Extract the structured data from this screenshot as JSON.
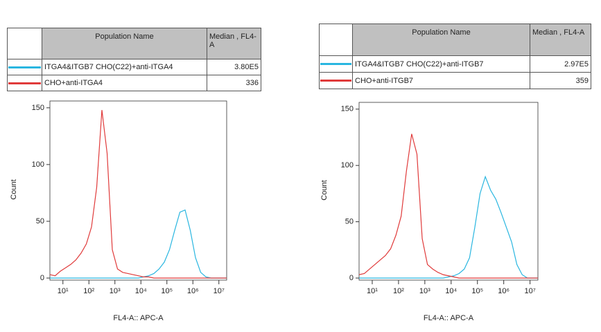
{
  "chart_data": [
    {
      "type": "line",
      "x_scale": "log",
      "xlabel": "FL4-A:: APC-A",
      "ylabel": "Count",
      "table_columns": [
        "Population Name",
        "Median , FL4-A"
      ],
      "x": [
        3.16,
        5.01,
        7.94,
        12.59,
        19.95,
        31.62,
        50.12,
        79.43,
        125.9,
        199.5,
        316.2,
        501.2,
        794.3,
        1259,
        1995,
        3162,
        5012,
        7943,
        12589,
        19953,
        31623,
        50119,
        79433,
        125893,
        199526,
        316228,
        501187,
        794328,
        1258925,
        1995262,
        3162278,
        5011872,
        7943282,
        12589254,
        19952623
      ],
      "series": [
        {
          "name": "ITGA4&ITGB7 CHO(C22)+anti-ITGA4",
          "color": "#29b6e0",
          "median": "3.80E5",
          "values": [
            0,
            0,
            0,
            0,
            0,
            0,
            0,
            0,
            0,
            0,
            0,
            0,
            0,
            0,
            0,
            0,
            0,
            0,
            1,
            2,
            4,
            8,
            14,
            25,
            42,
            58,
            60,
            42,
            18,
            5,
            1,
            0,
            0,
            0,
            0
          ]
        },
        {
          "name": "CHO+anti-ITGA4",
          "color": "#e03a3a",
          "median": "336",
          "values": [
            3,
            2,
            6,
            9,
            12,
            16,
            22,
            30,
            45,
            80,
            148,
            110,
            25,
            8,
            5,
            4,
            3,
            2,
            1,
            1,
            0,
            0,
            0,
            0,
            0,
            0,
            0,
            0,
            0,
            0,
            0,
            0,
            0,
            0,
            0
          ]
        }
      ],
      "xlim": [
        3.16,
        19952623
      ],
      "xticks": [
        {
          "value": 10,
          "label": "10¹"
        },
        {
          "value": 100,
          "label": "10²"
        },
        {
          "value": 1000,
          "label": "10³"
        },
        {
          "value": 10000,
          "label": "10⁴"
        },
        {
          "value": 100000,
          "label": "10⁵"
        },
        {
          "value": 1000000,
          "label": "10⁶"
        },
        {
          "value": 10000000,
          "label": "10⁷"
        }
      ],
      "ylim": [
        0,
        156
      ],
      "yticks": [
        0,
        50,
        100,
        150
      ]
    },
    {
      "type": "line",
      "x_scale": "log",
      "xlabel": "FL4-A:: APC-A",
      "ylabel": "Count",
      "table_columns": [
        "Population Name",
        "Median , FL4-A"
      ],
      "x": [
        3.16,
        5.01,
        7.94,
        12.59,
        19.95,
        31.62,
        50.12,
        79.43,
        125.9,
        199.5,
        316.2,
        501.2,
        794.3,
        1259,
        1995,
        3162,
        5012,
        7943,
        12589,
        19953,
        31623,
        50119,
        79433,
        125893,
        199526,
        316228,
        501187,
        794328,
        1258925,
        1995262,
        3162278,
        5011872,
        7943282,
        12589254,
        19952623
      ],
      "series": [
        {
          "name": "ITGA4&ITGB7 CHO(C22)+anti-ITGB7",
          "color": "#29b6e0",
          "median": "2.97E5",
          "values": [
            0,
            0,
            0,
            0,
            0,
            0,
            0,
            0,
            0,
            0,
            0,
            0,
            0,
            0,
            0,
            0,
            0,
            1,
            2,
            4,
            8,
            18,
            45,
            75,
            90,
            78,
            70,
            58,
            45,
            32,
            12,
            3,
            0,
            0,
            0
          ]
        },
        {
          "name": "CHO+anti-ITGB7",
          "color": "#e03a3a",
          "median": "359",
          "values": [
            3,
            4,
            8,
            12,
            16,
            20,
            26,
            38,
            55,
            95,
            128,
            110,
            35,
            12,
            8,
            5,
            3,
            2,
            1,
            0,
            0,
            0,
            0,
            0,
            0,
            0,
            0,
            0,
            0,
            0,
            0,
            0,
            0,
            0,
            0
          ]
        }
      ],
      "xlim": [
        3.16,
        19952623
      ],
      "xticks": [
        {
          "value": 10,
          "label": "10¹"
        },
        {
          "value": 100,
          "label": "10²"
        },
        {
          "value": 1000,
          "label": "10³"
        },
        {
          "value": 10000,
          "label": "10⁴"
        },
        {
          "value": 100000,
          "label": "10⁵"
        },
        {
          "value": 1000000,
          "label": "10⁶"
        },
        {
          "value": 10000000,
          "label": "10⁷"
        }
      ],
      "ylim": [
        0,
        156
      ],
      "yticks": [
        0,
        50,
        100,
        150
      ]
    }
  ]
}
